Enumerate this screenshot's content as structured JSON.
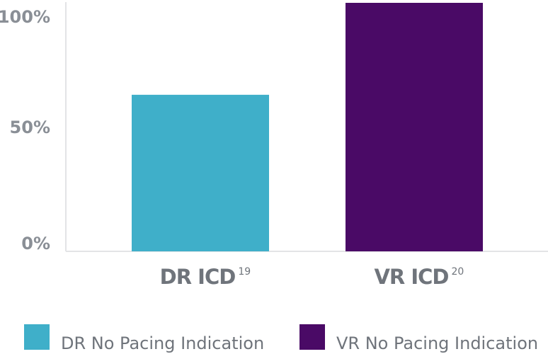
{
  "chart_data": {
    "type": "bar",
    "categories": [
      "DR ICD",
      "VR ICD"
    ],
    "category_superscripts": [
      "19",
      "20"
    ],
    "series": [
      {
        "name": "DR No Pacing Indication",
        "values": [
          63,
          null
        ],
        "color": "#3fafc9"
      },
      {
        "name": "VR No Pacing Indication",
        "values": [
          null,
          100
        ],
        "color": "#4a0a66"
      }
    ],
    "yticks": [
      "0%",
      "50%",
      "100%"
    ],
    "ytick_values": [
      0,
      50,
      100
    ],
    "ylim": [
      0,
      100
    ],
    "grid": false,
    "legend_placement": "bottom"
  }
}
